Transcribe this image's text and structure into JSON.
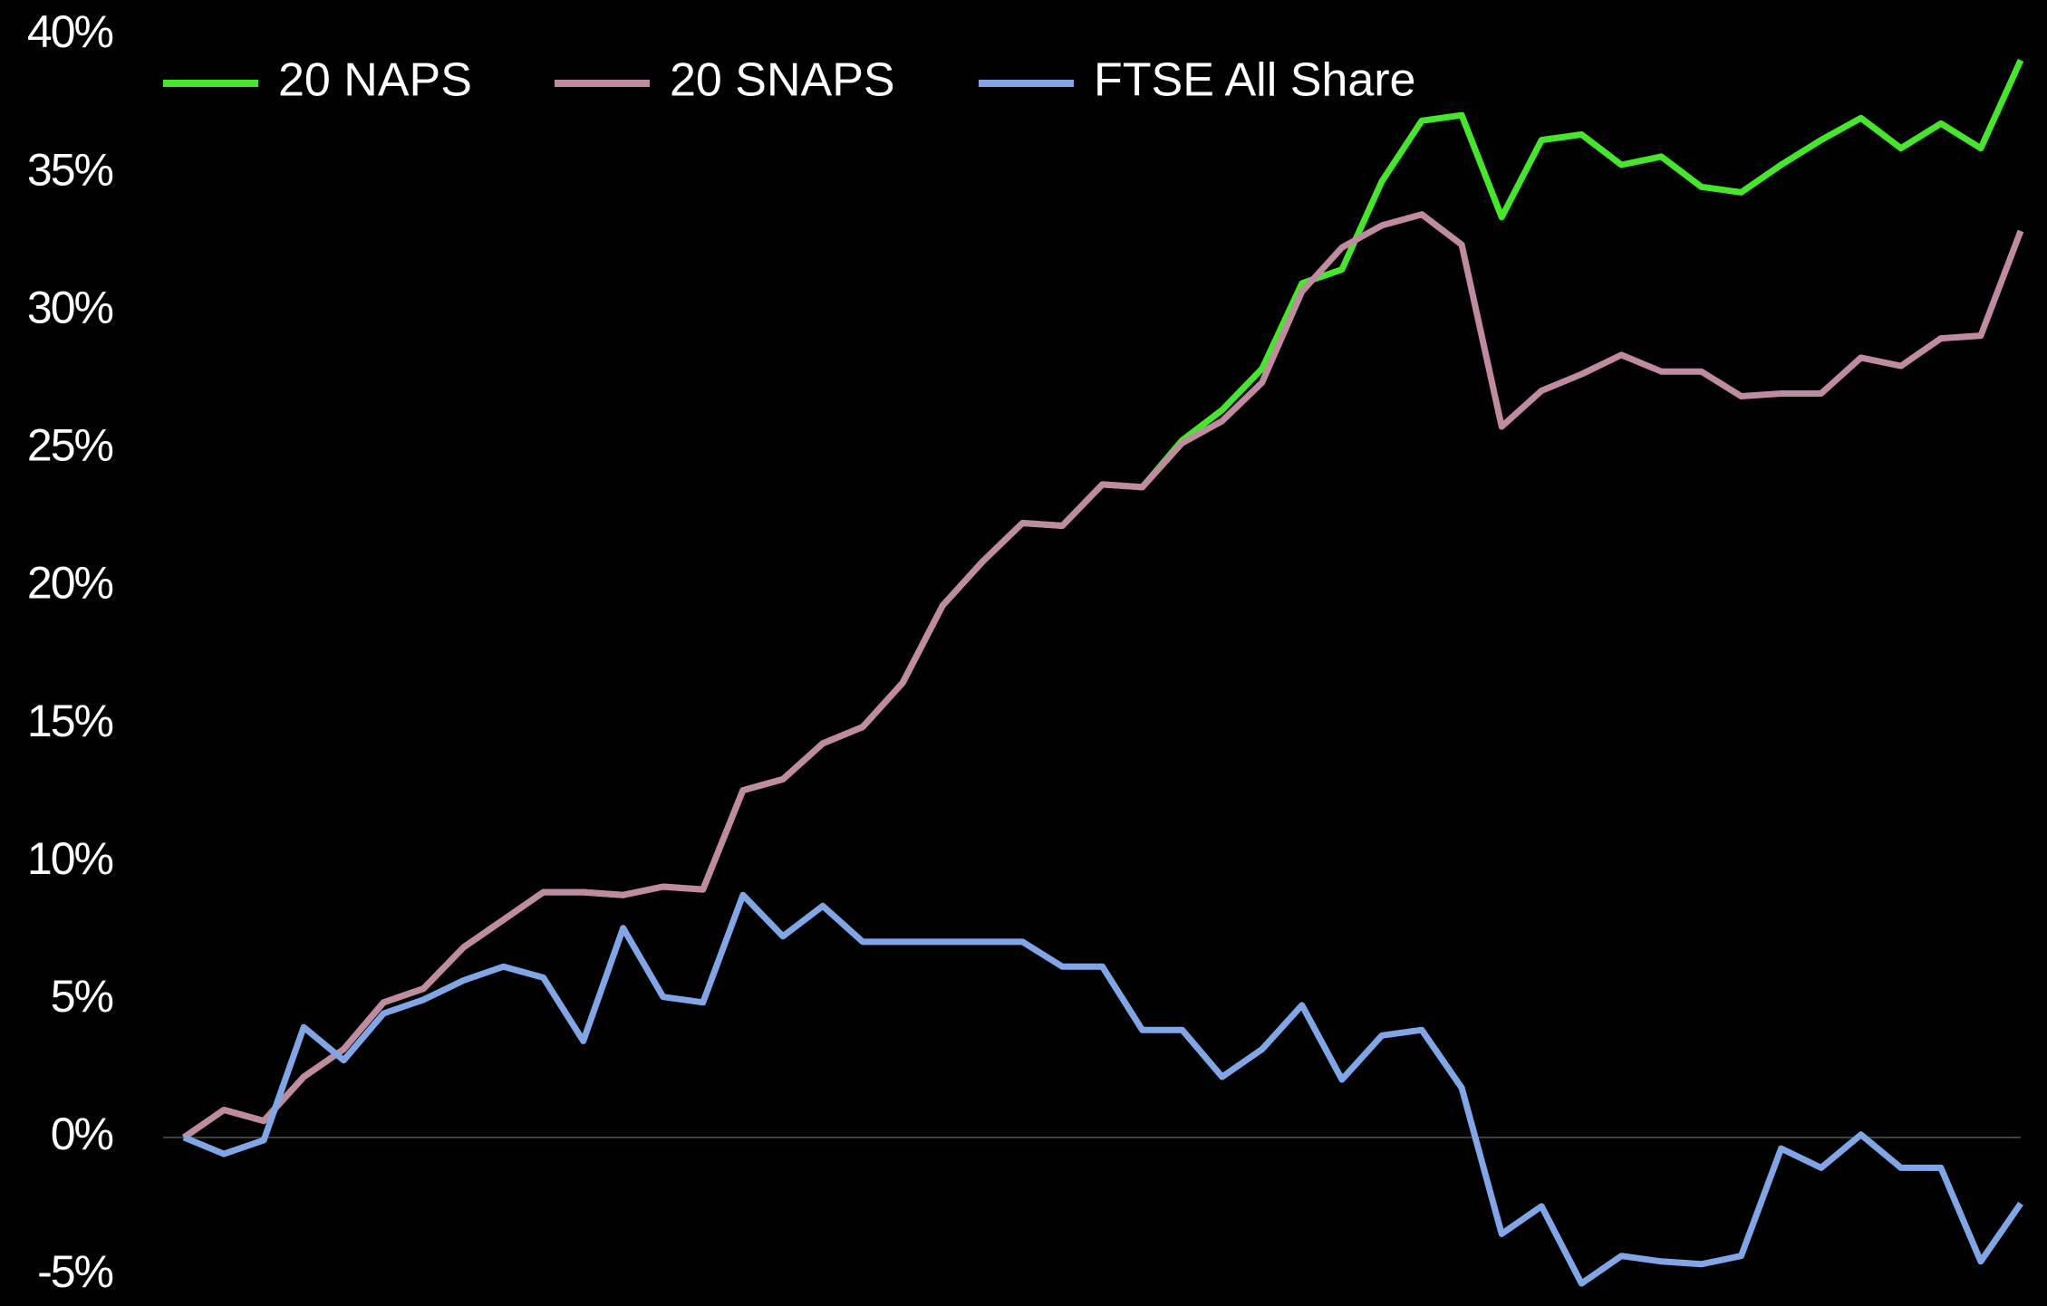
{
  "chart_data": {
    "type": "line",
    "categories": [
      null,
      null,
      null,
      null,
      null,
      null,
      null,
      null,
      null,
      null,
      null,
      null,
      null,
      null,
      null,
      null,
      null,
      null,
      null,
      null,
      null,
      null,
      null,
      null,
      null,
      null,
      null,
      null,
      null,
      null,
      null,
      null,
      null,
      null,
      null,
      null,
      null,
      null,
      null,
      null,
      null,
      null,
      null,
      null,
      null,
      null,
      null
    ],
    "series": [
      {
        "name": "20 NAPS",
        "color": "#46e62c",
        "values": [
          0,
          1.0,
          0.6,
          2.2,
          3.2,
          4.9,
          5.4,
          6.9,
          7.9,
          8.9,
          8.9,
          8.8,
          9.1,
          9.0,
          12.6,
          13.0,
          14.3,
          14.9,
          16.5,
          19.3,
          20.9,
          22.3,
          22.2,
          23.7,
          23.6,
          25.3,
          26.4,
          27.9,
          31.0,
          31.5,
          34.7,
          36.9,
          37.1,
          33.4,
          36.2,
          36.4,
          35.3,
          35.6,
          34.5,
          34.3,
          35.3,
          36.2,
          37.0,
          35.9,
          36.8,
          35.9,
          39.1
        ]
      },
      {
        "name": "20 SNAPS",
        "color": "#c08aa0",
        "values": [
          0,
          1.0,
          0.6,
          2.2,
          3.2,
          4.9,
          5.4,
          6.9,
          7.9,
          8.9,
          8.9,
          8.8,
          9.1,
          9.0,
          12.6,
          13.0,
          14.3,
          14.9,
          16.5,
          19.3,
          20.9,
          22.3,
          22.2,
          23.7,
          23.6,
          25.2,
          26.0,
          27.4,
          30.7,
          32.3,
          33.1,
          33.5,
          32.4,
          25.8,
          27.1,
          27.7,
          28.4,
          27.8,
          27.8,
          26.9,
          27.0,
          27.0,
          28.3,
          28.0,
          29.0,
          29.1,
          32.9
        ]
      },
      {
        "name": "FTSE All Share",
        "color": "#80a6e8",
        "values": [
          0,
          -0.6,
          -0.1,
          4.0,
          2.8,
          4.5,
          5.0,
          5.7,
          6.2,
          5.8,
          3.5,
          7.6,
          5.1,
          4.9,
          8.8,
          7.3,
          8.4,
          7.1,
          7.1,
          7.1,
          7.1,
          7.1,
          6.2,
          6.2,
          3.9,
          3.9,
          2.2,
          3.2,
          4.8,
          2.1,
          3.7,
          3.9,
          1.8,
          -3.5,
          -2.5,
          -5.3,
          -4.3,
          -4.5,
          -4.6,
          -4.3,
          -0.4,
          -1.1,
          0.1,
          -1.1,
          -1.1,
          -4.5,
          -2.4
        ]
      }
    ],
    "ylim": [
      -5,
      40
    ],
    "yticks": [
      {
        "value": -5,
        "label": "-5%"
      },
      {
        "value": 0,
        "label": "0%"
      },
      {
        "value": 5,
        "label": "5%"
      },
      {
        "value": 10,
        "label": "10%"
      },
      {
        "value": 15,
        "label": "15%"
      },
      {
        "value": 20,
        "label": "20%"
      },
      {
        "value": 25,
        "label": "25%"
      },
      {
        "value": 30,
        "label": "30%"
      },
      {
        "value": 35,
        "label": "35%"
      },
      {
        "value": 40,
        "label": "40%"
      }
    ],
    "grid": false,
    "zero_line": true,
    "legend": "top"
  }
}
